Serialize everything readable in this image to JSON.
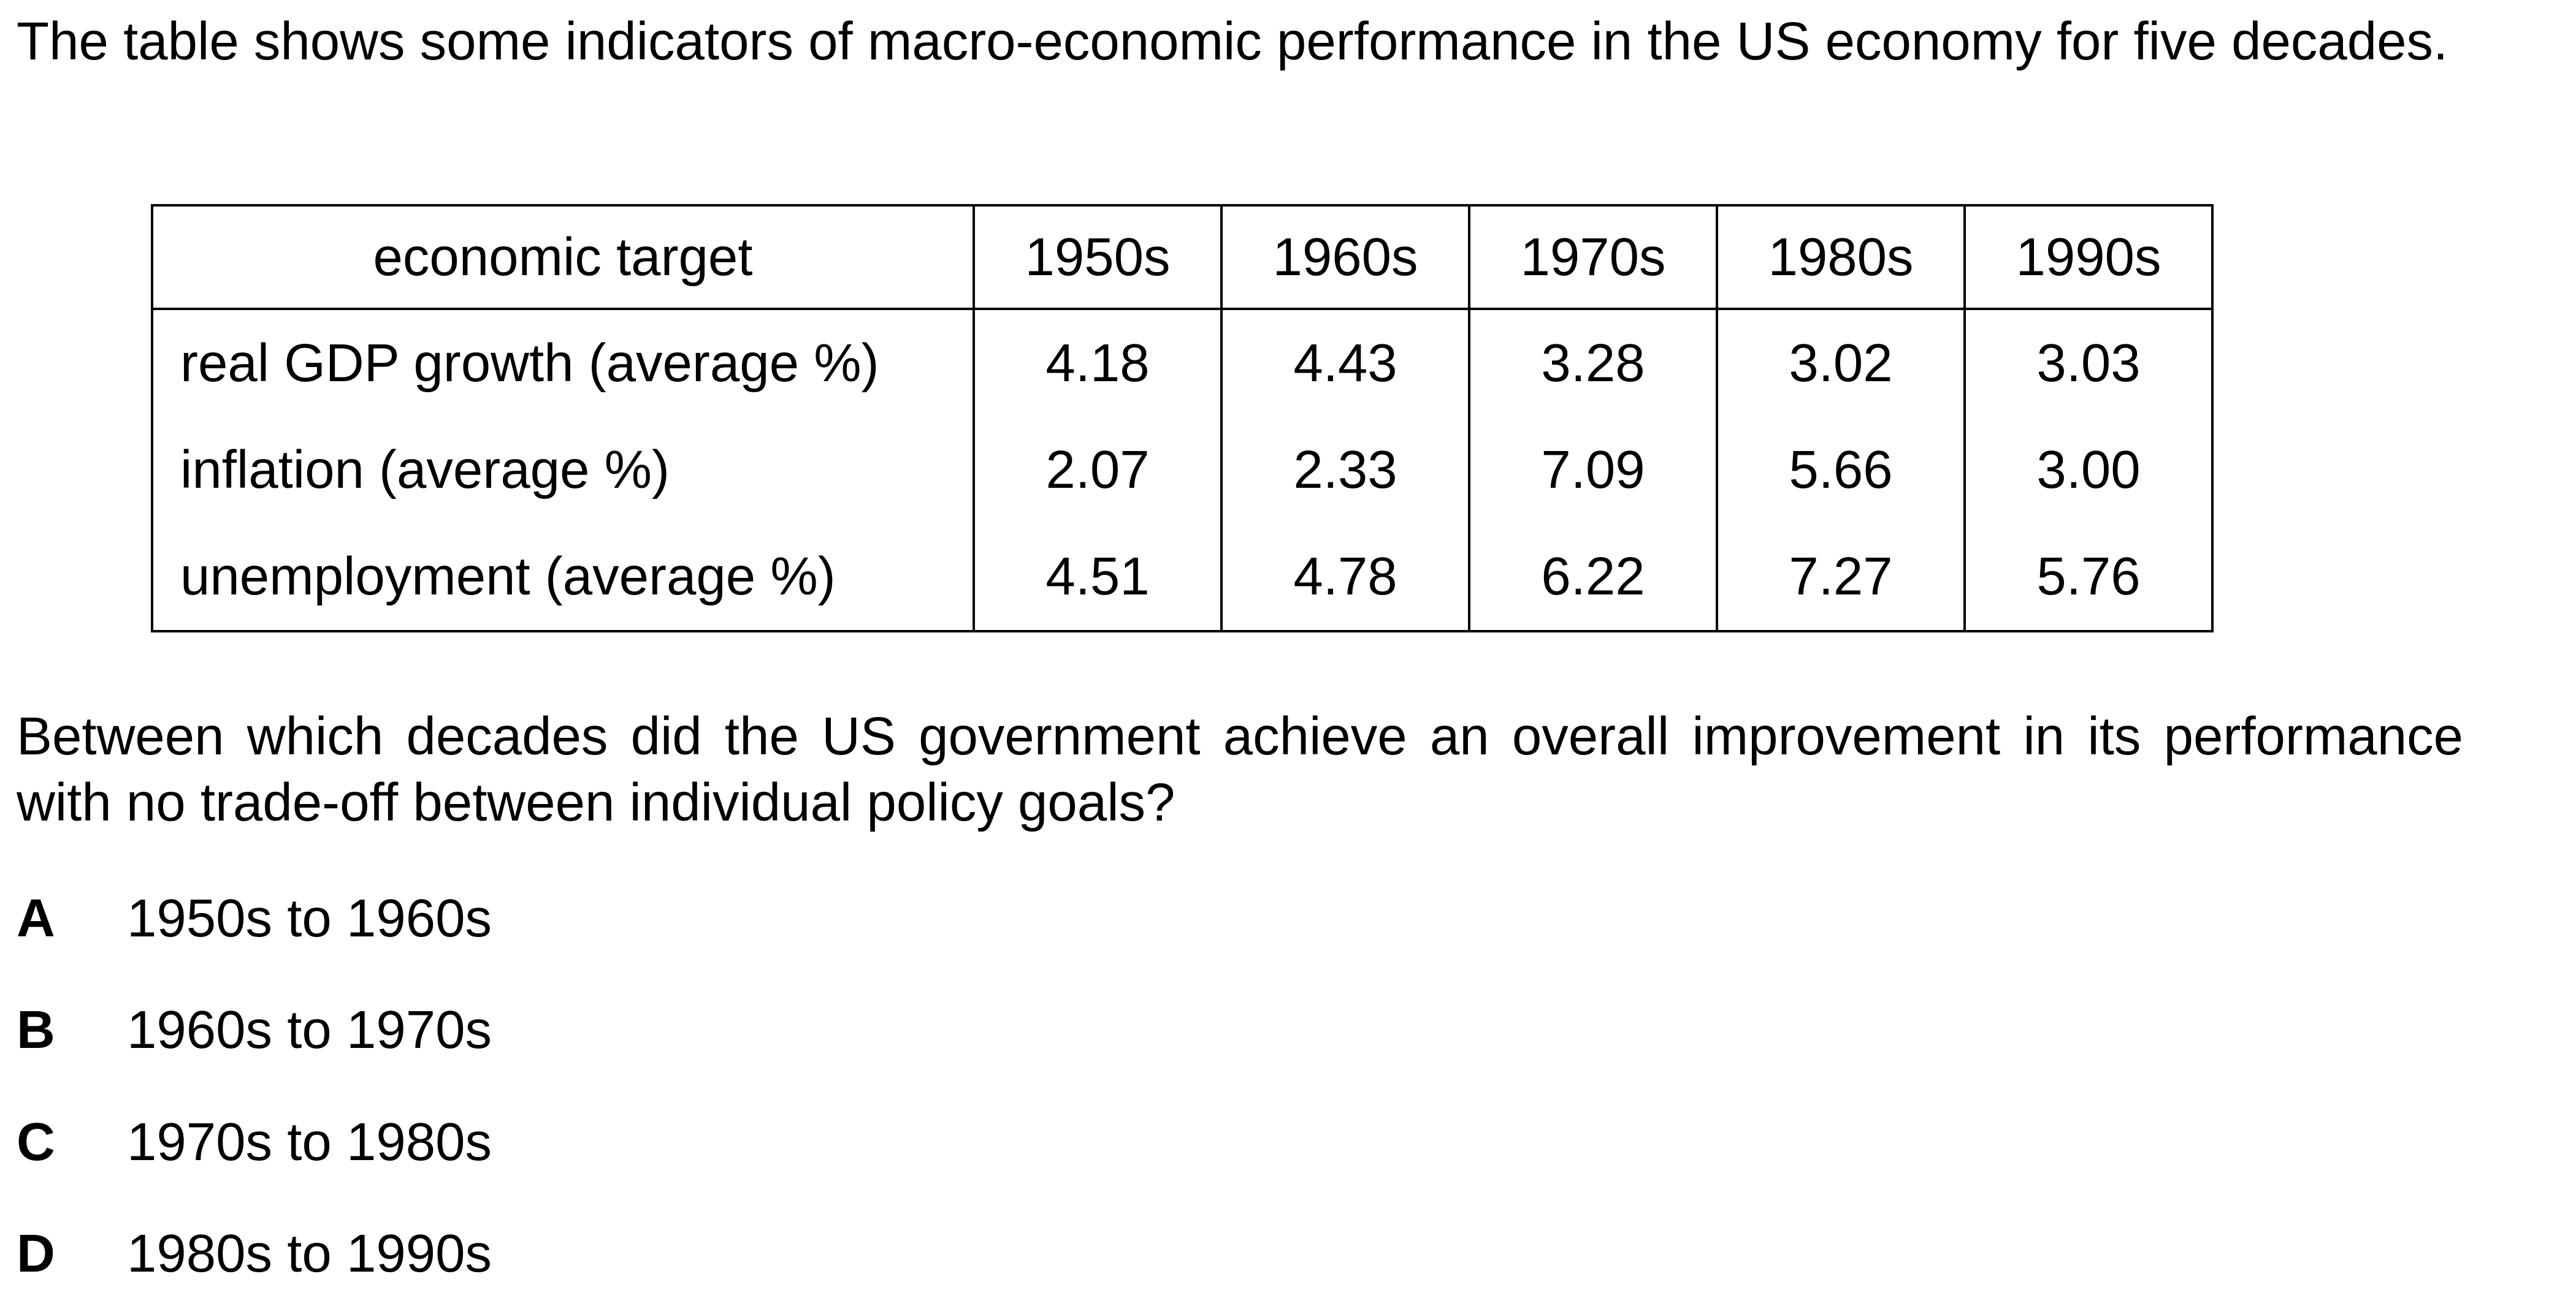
{
  "intro": "The table shows some indicators of macro-economic performance in the US economy for five decades.",
  "table": {
    "header": [
      "economic target",
      "1950s",
      "1960s",
      "1970s",
      "1980s",
      "1990s"
    ],
    "rows": [
      {
        "label": "real GDP growth (average %)",
        "values": [
          "4.18",
          "4.43",
          "3.28",
          "3.02",
          "3.03"
        ]
      },
      {
        "label": "inflation (average %)",
        "values": [
          "2.07",
          "2.33",
          "7.09",
          "5.66",
          "3.00"
        ]
      },
      {
        "label": "unemployment (average %)",
        "values": [
          "4.51",
          "4.78",
          "6.22",
          "7.27",
          "5.76"
        ]
      }
    ]
  },
  "question": "Between which decades did the US government achieve an overall improvement in its performance with no trade-off between individual policy goals?",
  "options": [
    {
      "letter": "A",
      "text": "1950s to 1960s"
    },
    {
      "letter": "B",
      "text": "1960s to 1970s"
    },
    {
      "letter": "C",
      "text": "1970s to 1980s"
    },
    {
      "letter": "D",
      "text": "1980s to 1990s"
    }
  ]
}
